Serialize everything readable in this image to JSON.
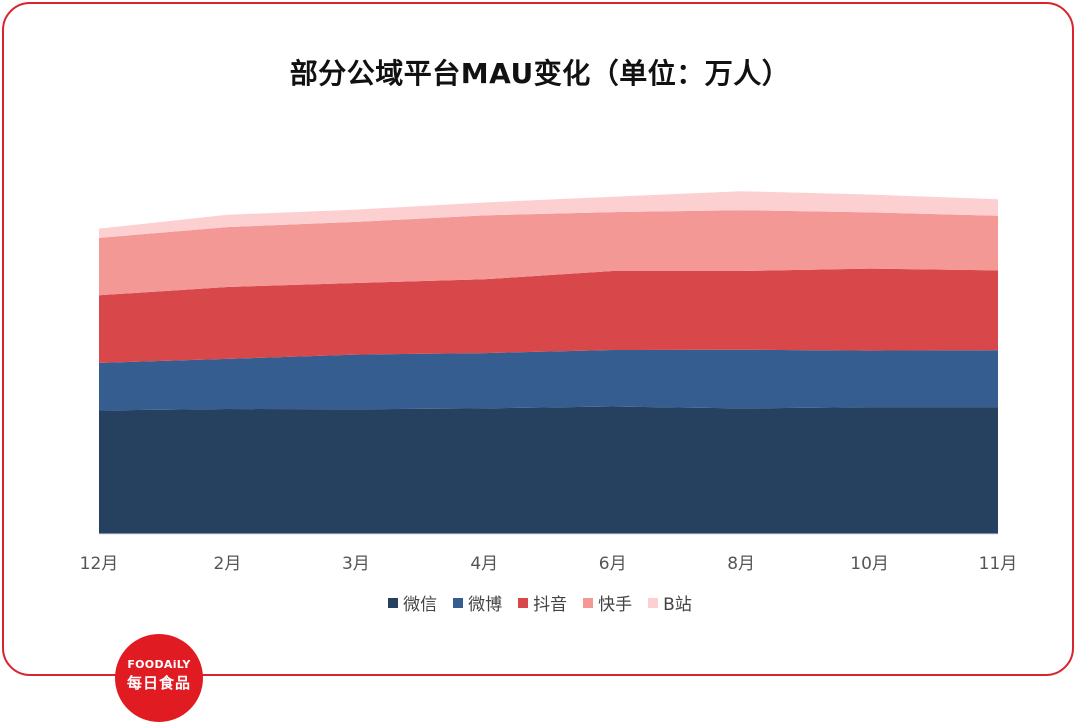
{
  "chart_data": {
    "type": "area",
    "title": "部分公域平台MAU变化（单位：万人）",
    "xlabel": "",
    "ylabel": "",
    "categories": [
      "12月",
      "2月",
      "3月",
      "4月",
      "6月",
      "8月",
      "10月",
      "11月"
    ],
    "stacked": true,
    "grid": false,
    "legend_position": "bottom",
    "ylim": [
      0,
      125000
    ],
    "series": [
      {
        "name": "微信",
        "color": "#264060",
        "values": [
          40200,
          40700,
          40600,
          40900,
          41500,
          40900,
          41300,
          41300
        ]
      },
      {
        "name": "微博",
        "color": "#355d8f",
        "values": [
          15500,
          16300,
          17800,
          18000,
          18400,
          19100,
          18400,
          18500
        ]
      },
      {
        "name": "抖音",
        "color": "#d8474a",
        "values": [
          22000,
          23400,
          23300,
          24000,
          25700,
          25600,
          26700,
          26000
        ]
      },
      {
        "name": "快手",
        "color": "#f49896",
        "values": [
          18700,
          19500,
          19900,
          20800,
          19200,
          19800,
          18300,
          17800
        ]
      },
      {
        "name": "B站",
        "color": "#fcd0d0",
        "values": [
          3000,
          4000,
          4000,
          4200,
          5000,
          6200,
          5800,
          5400
        ]
      }
    ]
  },
  "logo": {
    "en": "FOODAiLY",
    "cn": "每日食品"
  }
}
